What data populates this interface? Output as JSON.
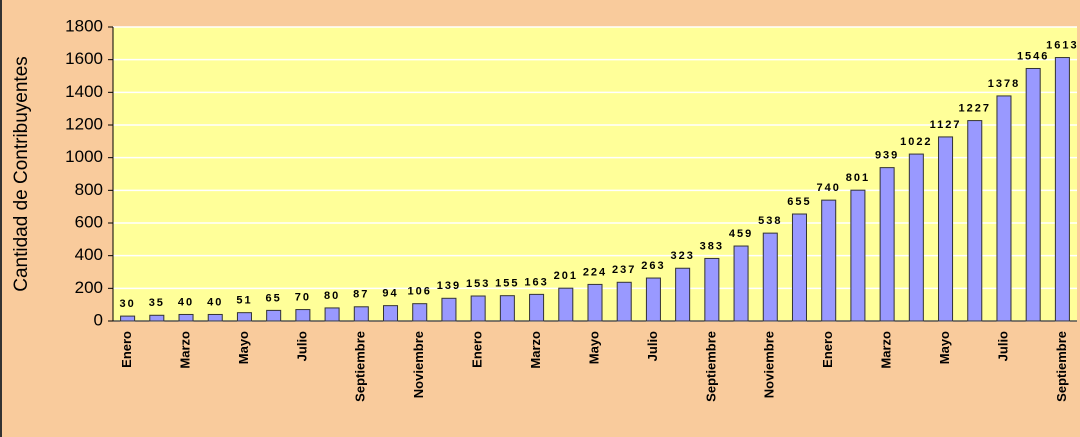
{
  "chart_data": {
    "type": "bar",
    "ylabel": "Cantidad de Contribuyentes",
    "categories": [
      "Enero",
      null,
      "Marzo",
      null,
      "Mayo",
      null,
      "Julio",
      null,
      "Septiembre",
      null,
      "Noviembre",
      null,
      "Enero",
      null,
      "Marzo",
      null,
      "Mayo",
      null,
      "Julio",
      null,
      "Septiembre",
      null,
      "Noviembre",
      null,
      "Enero",
      null,
      "Marzo",
      null,
      "Mayo",
      null,
      "Julio",
      null,
      "Septiembre"
    ],
    "values": [
      30,
      35,
      40,
      40,
      51,
      65,
      70,
      80,
      87,
      94,
      106,
      139,
      153,
      155,
      163,
      201,
      224,
      237,
      263,
      323,
      383,
      459,
      538,
      655,
      740,
      801,
      939,
      1022,
      1127,
      1227,
      1378,
      1546,
      1613
    ],
    "color": "#9999ff",
    "ylim": [
      0,
      1800
    ],
    "yticks": [
      0,
      200,
      400,
      600,
      800,
      1000,
      1200,
      1400,
      1600,
      1800
    ],
    "grid": true
  }
}
